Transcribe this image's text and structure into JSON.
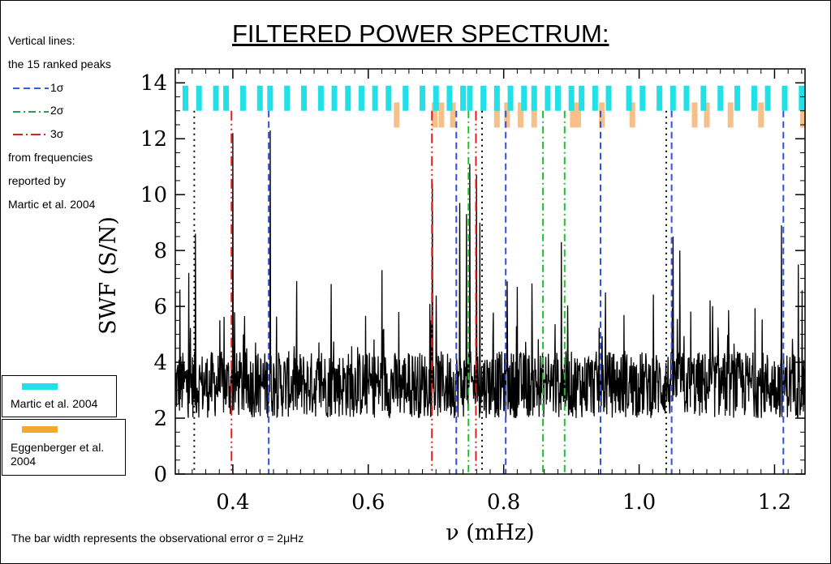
{
  "title": "FILTERED POWER SPECTRUM:",
  "sidebar": {
    "line1": "Vertical lines:",
    "line2": "the 15 ranked peaks",
    "legend": [
      {
        "label": "1σ",
        "color": "#3060e0",
        "dash": "8,5"
      },
      {
        "label": "2σ",
        "color": "#20a050",
        "dash": "9,4,2,4"
      },
      {
        "label": "3σ",
        "color": "#e02020",
        "dash": "12,4,2,4"
      }
    ],
    "line3": "from frequencies",
    "line4": "reported by",
    "line5": "Martic et al. 2004"
  },
  "boxes": {
    "martic": {
      "label": "Martic et al. 2004",
      "color": "#22e0e8"
    },
    "eggen": {
      "label": "Eggenberger et al. 2004",
      "color": "#f5a830"
    }
  },
  "footnote": "The bar width represents the observational error σ = 2μHz",
  "chart_data": {
    "type": "line",
    "title": "FILTERED POWER SPECTRUM:",
    "xlabel": "ν (mHz)",
    "ylabel": "SWF (S/N)",
    "xlim": [
      0.315,
      1.245
    ],
    "ylim": [
      0,
      14.5
    ],
    "xticks": [
      0.4,
      0.6,
      0.8,
      1.0,
      1.2
    ],
    "yticks": [
      0,
      2,
      4,
      6,
      8,
      10,
      12,
      14
    ],
    "xtick_labels": [
      "0.4",
      "0.6",
      "0.8",
      "1.0",
      "1.2"
    ],
    "ytick_labels": [
      "0",
      "2",
      "4",
      "6",
      "8",
      "10",
      "12",
      "14"
    ],
    "noise_level": 3.2,
    "notable_peaks": [
      {
        "x": 0.322,
        "y": 6.6
      },
      {
        "x": 0.335,
        "y": 7.2
      },
      {
        "x": 0.345,
        "y": 8.6
      },
      {
        "x": 0.4,
        "y": 12.2
      },
      {
        "x": 0.455,
        "y": 12.3
      },
      {
        "x": 0.545,
        "y": 6.8
      },
      {
        "x": 0.62,
        "y": 7.3
      },
      {
        "x": 0.695,
        "y": 10.4
      },
      {
        "x": 0.735,
        "y": 9.7
      },
      {
        "x": 0.745,
        "y": 9.3
      },
      {
        "x": 0.75,
        "y": 11.1
      },
      {
        "x": 0.76,
        "y": 10.7
      },
      {
        "x": 0.765,
        "y": 9.0
      },
      {
        "x": 0.805,
        "y": 6.9
      },
      {
        "x": 0.82,
        "y": 6.7
      },
      {
        "x": 0.885,
        "y": 8.3
      },
      {
        "x": 0.95,
        "y": 6.5
      },
      {
        "x": 1.05,
        "y": 8.5
      },
      {
        "x": 1.06,
        "y": 8.0
      },
      {
        "x": 1.21,
        "y": 8.9
      },
      {
        "x": 1.235,
        "y": 7.5
      }
    ],
    "vertical_lines": [
      {
        "x": 0.343,
        "style": "dotted",
        "color": "#000000"
      },
      {
        "x": 0.398,
        "style": "3sigma",
        "color": "#e02020"
      },
      {
        "x": 0.453,
        "style": "1sigma",
        "color": "#3050e0"
      },
      {
        "x": 0.694,
        "style": "3sigma",
        "color": "#e02020"
      },
      {
        "x": 0.73,
        "style": "1sigma",
        "color": "#3050e0"
      },
      {
        "x": 0.748,
        "style": "2sigma",
        "color": "#20c030"
      },
      {
        "x": 0.759,
        "style": "3sigma",
        "color": "#e02020"
      },
      {
        "x": 0.768,
        "style": "dotted",
        "color": "#000000"
      },
      {
        "x": 0.803,
        "style": "1sigma",
        "color": "#3050e0"
      },
      {
        "x": 0.858,
        "style": "2sigma",
        "color": "#20c030"
      },
      {
        "x": 0.89,
        "style": "2sigma",
        "color": "#20c030"
      },
      {
        "x": 0.943,
        "style": "1sigma",
        "color": "#3050e0"
      },
      {
        "x": 1.04,
        "style": "dotted",
        "color": "#000000"
      },
      {
        "x": 1.048,
        "style": "1sigma",
        "color": "#3050e0"
      },
      {
        "x": 1.213,
        "style": "1sigma",
        "color": "#3050e0"
      }
    ],
    "martic_bars": [
      0.33,
      0.35,
      0.375,
      0.39,
      0.415,
      0.44,
      0.455,
      0.48,
      0.505,
      0.53,
      0.55,
      0.57,
      0.59,
      0.61,
      0.63,
      0.655,
      0.68,
      0.7,
      0.72,
      0.74,
      0.75,
      0.77,
      0.79,
      0.81,
      0.83,
      0.845,
      0.865,
      0.88,
      0.9,
      0.915,
      0.935,
      0.955,
      0.985,
      1.005,
      1.03,
      1.05,
      1.07,
      1.095,
      1.12,
      1.145,
      1.17,
      1.19,
      1.215,
      1.24
    ],
    "eggenberger_bars": [
      0.642,
      0.698,
      0.708,
      0.725,
      0.79,
      0.805,
      0.825,
      0.845,
      0.902,
      0.91,
      0.945,
      0.99,
      1.082,
      1.1,
      1.135,
      1.18,
      1.242
    ],
    "bar_y_range_martic": [
      13.0,
      13.9
    ],
    "bar_y_range_eggen": [
      12.4,
      13.3
    ]
  }
}
